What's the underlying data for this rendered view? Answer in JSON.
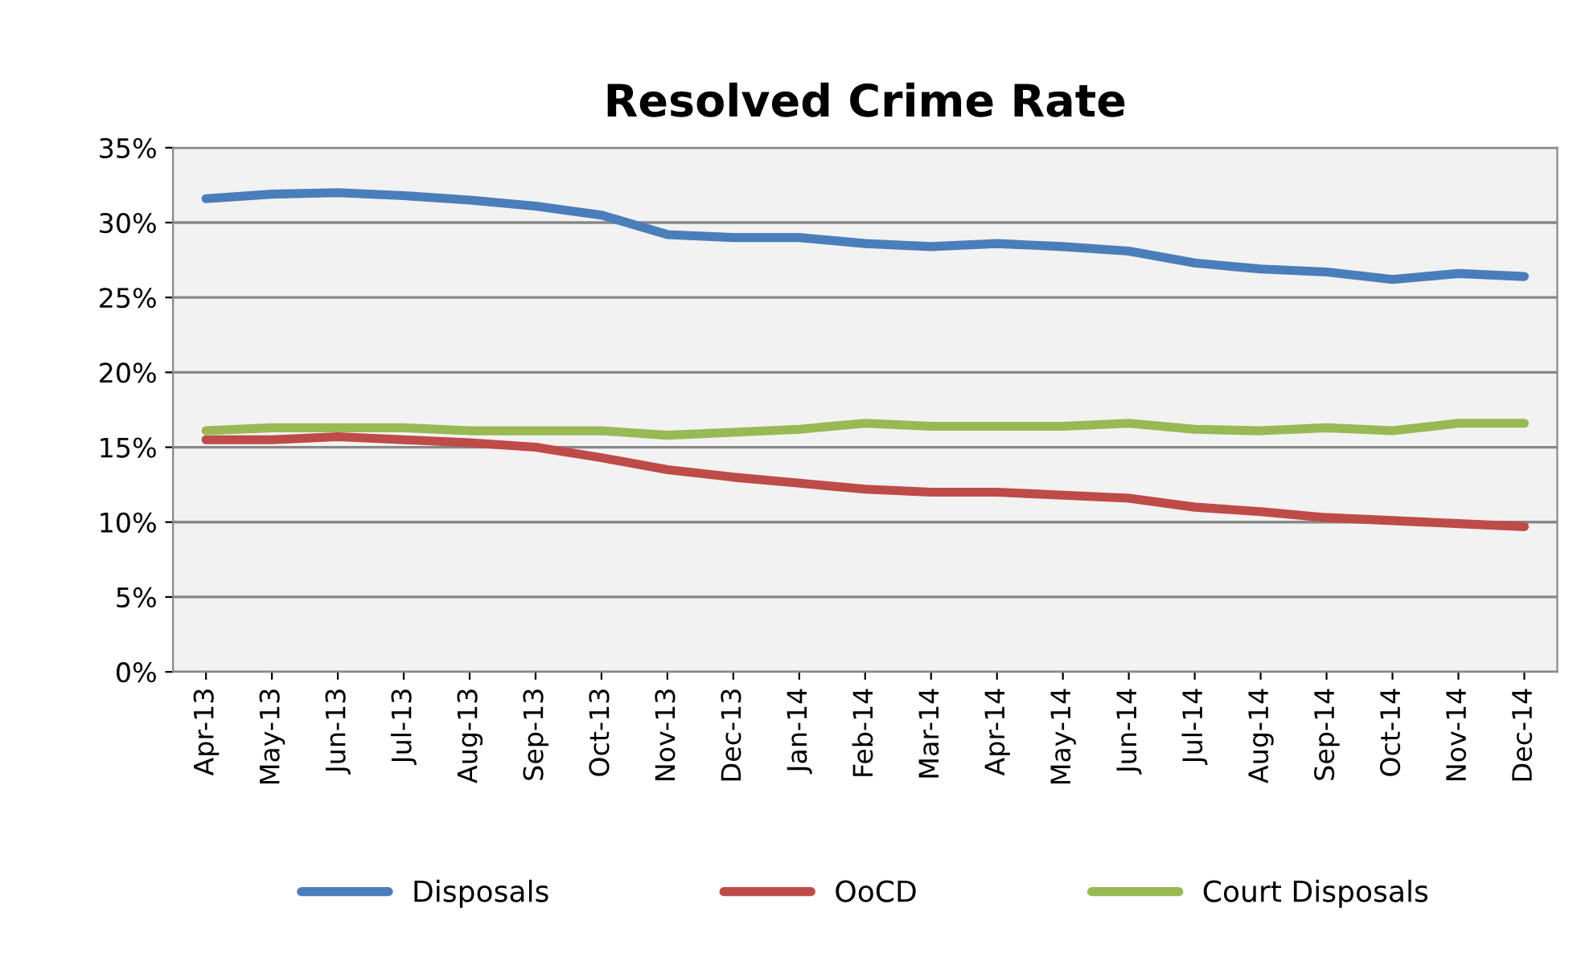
{
  "chart_data": {
    "type": "line",
    "title": "Resolved Crime Rate",
    "categories": [
      "Apr-13",
      "May-13",
      "Jun-13",
      "Jul-13",
      "Aug-13",
      "Sep-13",
      "Oct-13",
      "Nov-13",
      "Dec-13",
      "Jan-14",
      "Feb-14",
      "Mar-14",
      "Apr-14",
      "May-14",
      "Jun-14",
      "Jul-14",
      "Aug-14",
      "Sep-14",
      "Oct-14",
      "Nov-14",
      "Dec-14"
    ],
    "series": [
      {
        "name": "Disposals",
        "color": "#4a7ebb",
        "values": [
          31.6,
          31.9,
          32.0,
          31.8,
          31.5,
          31.1,
          30.5,
          29.2,
          29.0,
          29.0,
          28.6,
          28.4,
          28.6,
          28.4,
          28.1,
          27.3,
          26.9,
          26.7,
          26.2,
          26.6,
          26.4
        ]
      },
      {
        "name": "OoCD",
        "color": "#be4b48",
        "values": [
          15.5,
          15.5,
          15.7,
          15.5,
          15.3,
          15.0,
          14.3,
          13.5,
          13.0,
          12.6,
          12.2,
          12.0,
          12.0,
          11.8,
          11.6,
          11.0,
          10.7,
          10.3,
          10.1,
          9.9,
          9.7
        ]
      },
      {
        "name": "Court Disposals",
        "color": "#98b954",
        "values": [
          16.1,
          16.3,
          16.3,
          16.3,
          16.1,
          16.1,
          16.1,
          15.8,
          16.0,
          16.2,
          16.6,
          16.4,
          16.4,
          16.4,
          16.6,
          16.2,
          16.1,
          16.3,
          16.1,
          16.6,
          16.6
        ]
      }
    ],
    "ylim": [
      0,
      35
    ],
    "yticks": [
      {
        "value": 0,
        "label": "0%"
      },
      {
        "value": 5,
        "label": "5%"
      },
      {
        "value": 10,
        "label": "10%"
      },
      {
        "value": 15,
        "label": "15%"
      },
      {
        "value": 20,
        "label": "20%"
      },
      {
        "value": 25,
        "label": "25%"
      },
      {
        "value": 30,
        "label": "30%"
      },
      {
        "value": 35,
        "label": "35%"
      }
    ],
    "grid": "y",
    "legend": "bottom",
    "marker": "none",
    "line_style": "solid"
  }
}
